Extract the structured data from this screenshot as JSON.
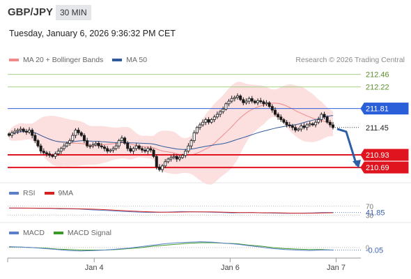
{
  "header": {
    "symbol": "GBP/JPY",
    "timeframe": "30 MIN",
    "datetime": "Tuesday, January 6, 2026 9:36:32 PM CET"
  },
  "main_legend": [
    {
      "label": "MA 20 + Bollinger Bands",
      "color": "#f08a8a"
    },
    {
      "label": "MA 50",
      "color": "#2e5a9c"
    }
  ],
  "credit": "Research © 2026 Trading Central",
  "rsi_legend": [
    {
      "label": "RSI",
      "color": "#5b7fc9"
    },
    {
      "label": "9MA",
      "color": "#d42020"
    }
  ],
  "macd_legend": [
    {
      "label": "MACD",
      "color": "#5b7fc9"
    },
    {
      "label": "MACD Signal",
      "color": "#3c9a2a"
    }
  ],
  "chart_data": {
    "type": "candlestick",
    "price_axis": {
      "min": 210.4,
      "max": 212.6
    },
    "levels": [
      {
        "label": "212.46",
        "value": 212.46,
        "kind": "resistance",
        "color": "#a8d08a"
      },
      {
        "label": "212.22",
        "value": 212.22,
        "kind": "resistance",
        "color": "#a8d08a"
      },
      {
        "label": "211.81",
        "value": 211.81,
        "kind": "pivot",
        "color": "#2b5fd9"
      },
      {
        "label": "211.45",
        "value": 211.45,
        "kind": "last",
        "color": "#222222"
      },
      {
        "label": "210.93",
        "value": 210.93,
        "kind": "support",
        "color": "#e0141e"
      },
      {
        "label": "210.69",
        "value": 210.69,
        "kind": "support",
        "color": "#e0141e"
      }
    ],
    "closes": [
      211.3,
      211.35,
      211.38,
      211.4,
      211.42,
      211.38,
      211.36,
      211.4,
      211.3,
      211.2,
      211.1,
      211.0,
      210.97,
      210.95,
      210.92,
      210.9,
      210.95,
      211.0,
      211.05,
      211.1,
      211.15,
      211.2,
      211.3,
      211.4,
      211.35,
      211.3,
      211.2,
      211.1,
      211.1,
      211.12,
      211.15,
      211.1,
      211.08,
      211.05,
      211.0,
      211.02,
      211.05,
      211.1,
      211.2,
      211.25,
      211.15,
      211.05,
      211.0,
      211.05,
      211.1,
      211.05,
      211.02,
      211.0,
      211.05,
      211.02,
      210.9,
      210.7,
      210.65,
      210.72,
      210.8,
      210.85,
      210.88,
      210.9,
      210.85,
      210.88,
      210.92,
      211.0,
      211.1,
      211.2,
      211.35,
      211.45,
      211.5,
      211.55,
      211.6,
      211.55,
      211.6,
      211.65,
      211.7,
      211.75,
      211.8,
      211.9,
      211.95,
      212.0,
      212.02,
      212.05,
      211.98,
      211.92,
      211.95,
      212.0,
      211.95,
      211.92,
      211.96,
      211.94,
      211.9,
      211.92,
      211.85,
      211.78,
      211.7,
      211.65,
      211.6,
      211.55,
      211.5,
      211.48,
      211.45,
      211.4,
      211.42,
      211.48,
      211.45,
      211.5,
      211.52,
      211.5,
      211.55,
      211.6,
      211.7,
      211.65,
      211.55,
      211.5,
      211.45
    ],
    "forecast": {
      "from": 211.45,
      "to": 210.69,
      "direction": "down",
      "color": "#2e5fa6"
    },
    "rsi": {
      "value_label": "41.85",
      "levels": [
        "70",
        "30"
      ],
      "level_values": [
        70,
        30
      ],
      "range": [
        0,
        100
      ],
      "values": [
        62,
        61,
        61,
        60,
        60,
        58,
        58,
        57,
        54,
        52,
        50,
        47,
        45,
        43,
        42,
        43,
        44,
        46,
        45,
        44,
        43,
        42,
        40,
        41,
        42,
        40,
        39,
        38,
        38,
        39,
        40,
        42,
        41.85
      ]
    },
    "macd": {
      "value_label": "-0.05",
      "levels": [
        "0"
      ],
      "range": [
        -0.2,
        0.2
      ],
      "values": [
        0.02,
        0.01,
        0.0,
        -0.02,
        -0.04,
        -0.06,
        -0.07,
        -0.06,
        -0.05,
        -0.03,
        -0.01,
        0.02,
        0.05,
        0.08,
        0.1,
        0.11,
        0.12,
        0.11,
        0.09,
        0.07,
        0.04,
        0.01,
        -0.02,
        -0.04,
        -0.05,
        -0.06,
        -0.05,
        -0.05
      ],
      "signal": [
        0.01,
        0.01,
        0.0,
        -0.01,
        -0.03,
        -0.04,
        -0.05,
        -0.05,
        -0.05,
        -0.04,
        -0.02,
        0.0,
        0.03,
        0.05,
        0.07,
        0.09,
        0.1,
        0.1,
        0.09,
        0.08,
        0.05,
        0.03,
        0.0,
        -0.02,
        -0.03,
        -0.04,
        -0.04,
        -0.05
      ]
    },
    "x_labels": [
      {
        "label": "Jan 4",
        "pos": 0.245
      },
      {
        "label": "Jan 6",
        "pos": 0.63
      },
      {
        "label": "Jan 7",
        "pos": 0.93
      }
    ]
  }
}
